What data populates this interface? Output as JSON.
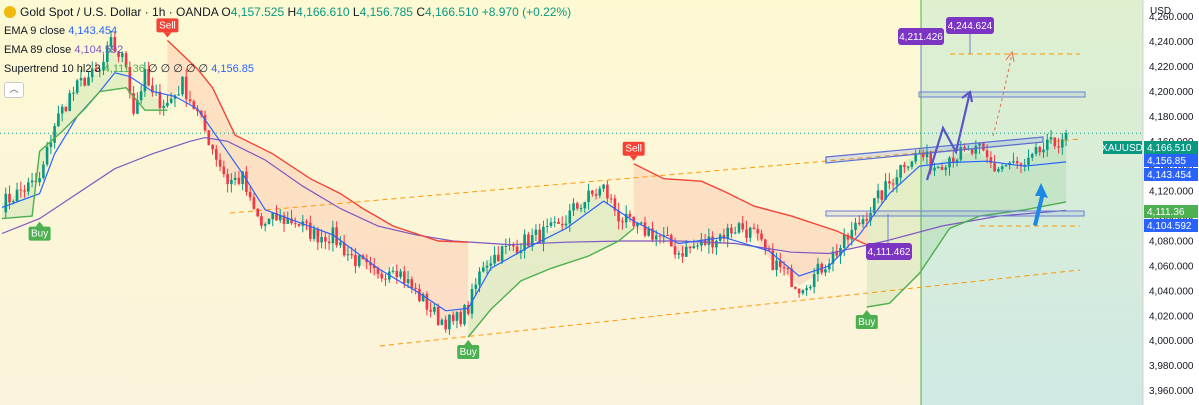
{
  "legend": {
    "symbol_title": "Gold Spot / U.S. Dollar · 1h · OANDA",
    "ohlc": {
      "o_label": "O",
      "o": "4,157.525",
      "h_label": "H",
      "h": "4,166.610",
      "l_label": "L",
      "l": "4,156.785",
      "c_label": "C",
      "c": "4,166.510",
      "change": "+8.970 (+0.22%)"
    },
    "ema9_label": "EMA 9 close",
    "ema9_value": "4,143.454",
    "ema89_label": "EMA 89 close",
    "ema89_value": "4,104.592",
    "supertrend_label": "Supertrend 10 hl2 3",
    "supertrend_value": "4,111.36",
    "supertrend_zeros": "∅ ∅ ∅ ∅ ∅",
    "supertrend_value2": "4,156.85",
    "collapse_icon": "chevron-up-icon"
  },
  "colors": {
    "up": "#089981",
    "down": "#f23645",
    "ema9": "#2962ff",
    "ema89": "#7e57c2",
    "st_up": "#4caf50",
    "st_down": "#f44336",
    "trend_line": "#ff9800",
    "drawing": "#5b54c9",
    "label_purple": "#7b35c2"
  },
  "chart_data": {
    "type": "candlestick",
    "symbol": "XAUUSD",
    "currency": "USD",
    "timeframe": "1h",
    "ylim": [
      3950,
      4275
    ],
    "y_ticks": [
      3960,
      3980,
      4000,
      4020,
      4040,
      4060,
      4080,
      4100,
      4120,
      4140,
      4160,
      4180,
      4200,
      4220,
      4240,
      4260
    ],
    "y_tick_labels": [
      "3,960.000",
      "3,980.000",
      "4,000.000",
      "4,020.000",
      "4,040.000",
      "4,060.000",
      "4,080.000",
      "4,100.000",
      "4,120.000",
      "4,140.000",
      "4,160.000",
      "4,180.000",
      "4,200.000",
      "4,220.000",
      "4,240.000",
      "4,260.000"
    ],
    "bar_count": 230,
    "close_path": [
      [
        0,
        4110
      ],
      [
        6,
        4122
      ],
      [
        10,
        4128
      ],
      [
        14,
        4174
      ],
      [
        18,
        4196
      ],
      [
        22,
        4210
      ],
      [
        26,
        4215
      ],
      [
        29,
        4238
      ],
      [
        33,
        4222
      ],
      [
        35,
        4185
      ],
      [
        38,
        4212
      ],
      [
        40,
        4196
      ],
      [
        44,
        4190
      ],
      [
        48,
        4206
      ],
      [
        52,
        4182
      ],
      [
        56,
        4155
      ],
      [
        60,
        4128
      ],
      [
        64,
        4130
      ],
      [
        66,
        4110
      ],
      [
        69,
        4092
      ],
      [
        73,
        4098
      ],
      [
        78,
        4096
      ],
      [
        83,
        4085
      ],
      [
        88,
        4084
      ],
      [
        92,
        4070
      ],
      [
        96,
        4060
      ],
      [
        100,
        4050
      ],
      [
        104,
        4062
      ],
      [
        108,
        4046
      ],
      [
        112,
        4032
      ],
      [
        116,
        4018
      ],
      [
        120,
        4014
      ],
      [
        124,
        4026
      ],
      [
        128,
        4062
      ],
      [
        133,
        4072
      ],
      [
        138,
        4078
      ],
      [
        143,
        4085
      ],
      [
        148,
        4090
      ],
      [
        152,
        4105
      ],
      [
        156,
        4115
      ],
      [
        160,
        4122
      ],
      [
        164,
        4100
      ],
      [
        168,
        4090
      ],
      [
        172,
        4088
      ],
      [
        176,
        4081
      ],
      [
        180,
        4071
      ],
      [
        184,
        4075
      ],
      [
        188,
        4080
      ],
      [
        192,
        4086
      ],
      [
        196,
        4092
      ],
      [
        200,
        4085
      ],
      [
        204,
        4066
      ],
      [
        208,
        4055
      ],
      [
        212,
        4044
      ],
      [
        216,
        4052
      ],
      [
        220,
        4066
      ],
      [
        224,
        4078
      ],
      [
        228,
        4095
      ],
      [
        232,
        4110
      ],
      [
        236,
        4126
      ],
      [
        240,
        4144
      ],
      [
        244,
        4150
      ],
      [
        248,
        4140
      ],
      [
        252,
        4148
      ],
      [
        256,
        4150
      ],
      [
        260,
        4152
      ],
      [
        264,
        4138
      ],
      [
        268,
        4142
      ],
      [
        272,
        4138
      ],
      [
        276,
        4152
      ],
      [
        280,
        4158
      ],
      [
        283,
        4166.51
      ]
    ],
    "ema9_path": [
      [
        0,
        4107
      ],
      [
        10,
        4118
      ],
      [
        14,
        4150
      ],
      [
        20,
        4180
      ],
      [
        26,
        4200
      ],
      [
        30,
        4215
      ],
      [
        34,
        4212
      ],
      [
        40,
        4200
      ],
      [
        46,
        4196
      ],
      [
        52,
        4186
      ],
      [
        58,
        4160
      ],
      [
        64,
        4134
      ],
      [
        70,
        4105
      ],
      [
        78,
        4096
      ],
      [
        88,
        4085
      ],
      [
        100,
        4058
      ],
      [
        110,
        4040
      ],
      [
        118,
        4024
      ],
      [
        124,
        4026
      ],
      [
        130,
        4058
      ],
      [
        140,
        4075
      ],
      [
        150,
        4090
      ],
      [
        160,
        4112
      ],
      [
        168,
        4096
      ],
      [
        180,
        4078
      ],
      [
        192,
        4083
      ],
      [
        204,
        4072
      ],
      [
        212,
        4052
      ],
      [
        220,
        4060
      ],
      [
        228,
        4085
      ],
      [
        236,
        4118
      ],
      [
        244,
        4140
      ],
      [
        252,
        4143
      ],
      [
        262,
        4144
      ],
      [
        272,
        4140
      ],
      [
        283,
        4143.454
      ]
    ],
    "ema89_path": [
      [
        0,
        4086
      ],
      [
        10,
        4098
      ],
      [
        20,
        4118
      ],
      [
        30,
        4138
      ],
      [
        40,
        4150
      ],
      [
        50,
        4160
      ],
      [
        54,
        4163
      ],
      [
        60,
        4160
      ],
      [
        70,
        4145
      ],
      [
        80,
        4124
      ],
      [
        90,
        4106
      ],
      [
        100,
        4092
      ],
      [
        110,
        4085
      ],
      [
        120,
        4080
      ],
      [
        135,
        4077
      ],
      [
        150,
        4079
      ],
      [
        165,
        4080
      ],
      [
        180,
        4080
      ],
      [
        195,
        4078
      ],
      [
        210,
        4071
      ],
      [
        220,
        4070
      ],
      [
        235,
        4080
      ],
      [
        250,
        4092
      ],
      [
        265,
        4100
      ],
      [
        283,
        4104.592
      ]
    ],
    "supertrend_segments": [
      {
        "dir": "up",
        "path": [
          [
            0,
            4098
          ],
          [
            8,
            4100
          ],
          [
            10,
            4152
          ],
          [
            16,
            4168
          ],
          [
            22,
            4186
          ],
          [
            26,
            4200
          ],
          [
            33,
            4203
          ],
          [
            38,
            4185
          ],
          [
            44,
            4185
          ]
        ]
      },
      {
        "dir": "down",
        "path": [
          [
            44,
            4241
          ],
          [
            52,
            4218
          ],
          [
            56,
            4203
          ],
          [
            62,
            4165
          ],
          [
            72,
            4150
          ],
          [
            82,
            4130
          ],
          [
            90,
            4118
          ],
          [
            96,
            4106
          ],
          [
            104,
            4092
          ],
          [
            116,
            4080
          ],
          [
            124,
            4079
          ]
        ]
      },
      {
        "dir": "up",
        "path": [
          [
            124,
            4003
          ],
          [
            130,
            4025
          ],
          [
            138,
            4048
          ],
          [
            146,
            4058
          ],
          [
            156,
            4068
          ],
          [
            164,
            4080
          ],
          [
            168,
            4090
          ]
        ]
      },
      {
        "dir": "down",
        "path": [
          [
            168,
            4142
          ],
          [
            176,
            4130
          ],
          [
            186,
            4128
          ],
          [
            192,
            4120
          ],
          [
            200,
            4108
          ],
          [
            210,
            4100
          ],
          [
            222,
            4088
          ],
          [
            230,
            4077
          ]
        ]
      },
      {
        "dir": "up",
        "path": [
          [
            230,
            4027
          ],
          [
            236,
            4030
          ],
          [
            244,
            4054
          ],
          [
            252,
            4090
          ],
          [
            260,
            4100
          ],
          [
            272,
            4105
          ],
          [
            283,
            4111.36
          ]
        ]
      }
    ],
    "signals": [
      {
        "type": "Buy",
        "bar": 10,
        "price": 4098
      },
      {
        "type": "Sell",
        "bar": 44,
        "price": 4241
      },
      {
        "type": "Buy",
        "bar": 124,
        "price": 4003
      },
      {
        "type": "Sell",
        "bar": 168,
        "price": 4142
      },
      {
        "type": "Buy",
        "bar": 230,
        "price": 4027
      }
    ],
    "annotations": [
      {
        "kind": "price_label",
        "text": "4,211.426",
        "price": 4211.426
      },
      {
        "kind": "price_label",
        "text": "4,244.624",
        "price": 4244.624
      },
      {
        "kind": "price_label",
        "text": "4,111.462",
        "price": 4111.462
      }
    ],
    "axis_tags": [
      {
        "text": "XAUUSD",
        "price": 4166.51,
        "color": "#089981"
      },
      {
        "text": "4,166.510",
        "price": 4166.51,
        "color": "#089981"
      },
      {
        "text": "4,156.85",
        "price": 4156.85,
        "color": "#2962ff"
      },
      {
        "text": "4,143.454",
        "price": 4143.454,
        "color": "#2962ff"
      },
      {
        "text": "4,111.36",
        "price": 4111.36,
        "color": "#4caf50"
      },
      {
        "text": "4,104.592",
        "price": 4104.592,
        "color": "#2962ff"
      }
    ]
  }
}
